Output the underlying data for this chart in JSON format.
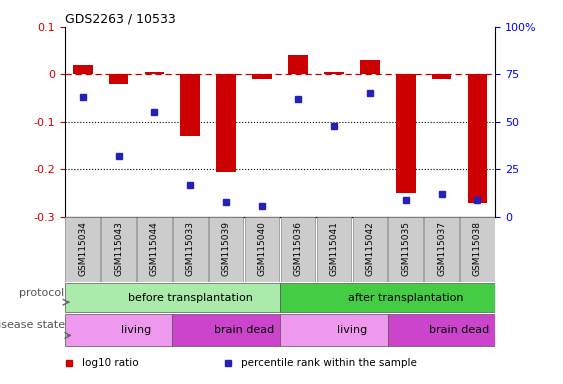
{
  "title": "GDS2263 / 10533",
  "samples": [
    "GSM115034",
    "GSM115043",
    "GSM115044",
    "GSM115033",
    "GSM115039",
    "GSM115040",
    "GSM115036",
    "GSM115041",
    "GSM115042",
    "GSM115035",
    "GSM115037",
    "GSM115038"
  ],
  "log10_ratio": [
    0.02,
    -0.02,
    0.005,
    -0.13,
    -0.205,
    -0.01,
    0.04,
    0.005,
    0.03,
    -0.25,
    -0.01,
    -0.27
  ],
  "percentile_rank": [
    63,
    32,
    55,
    17,
    8,
    6,
    62,
    48,
    65,
    9,
    12,
    9
  ],
  "ylim_left": [
    -0.3,
    0.1
  ],
  "ylim_right": [
    0,
    100
  ],
  "bar_color": "#cc0000",
  "dot_color": "#2222bb",
  "dashed_line_color": "#cc0000",
  "protocol_groups": [
    {
      "label": "before transplantation",
      "start": 0,
      "end": 6,
      "color": "#aaeaaa"
    },
    {
      "label": "after transplantation",
      "start": 6,
      "end": 12,
      "color": "#44cc44"
    }
  ],
  "disease_groups": [
    {
      "label": "living",
      "start": 0,
      "end": 3,
      "color": "#ee99ee"
    },
    {
      "label": "brain dead",
      "start": 3,
      "end": 6,
      "color": "#cc44cc"
    },
    {
      "label": "living",
      "start": 6,
      "end": 9,
      "color": "#ee99ee"
    },
    {
      "label": "brain dead",
      "start": 9,
      "end": 12,
      "color": "#cc44cc"
    }
  ],
  "legend_items": [
    {
      "label": "log10 ratio",
      "color": "#cc0000"
    },
    {
      "label": "percentile rank within the sample",
      "color": "#2222bb"
    }
  ],
  "xlabel_row1": "protocol",
  "xlabel_row2": "disease state",
  "grid_dotted_values": [
    -0.1,
    -0.2
  ],
  "right_axis_ticks": [
    0,
    25,
    50,
    75,
    100
  ],
  "right_axis_tick_labels": [
    "0",
    "25",
    "50",
    "75",
    "100%"
  ],
  "bar_width": 0.55,
  "sample_label_color": "#aaaaaa",
  "left_ytick_labels": [
    "0.1",
    "0",
    "-0.1",
    "-0.2",
    "-0.3"
  ],
  "left_ytick_values": [
    0.1,
    0.0,
    -0.1,
    -0.2,
    -0.3
  ]
}
